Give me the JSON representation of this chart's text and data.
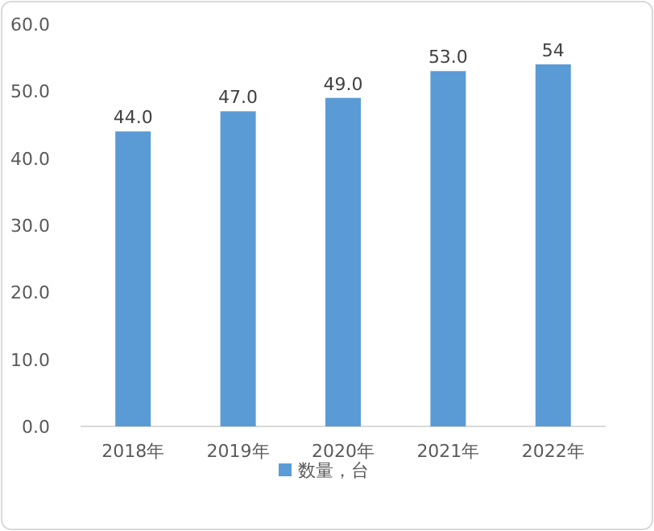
{
  "chart_data": {
    "type": "bar",
    "categories": [
      "2018年",
      "2019年",
      "2020年",
      "2021年",
      "2022年"
    ],
    "series": [
      {
        "name": "数量，台",
        "color": "#5b9bd5",
        "values": [
          44.0,
          47.0,
          49.0,
          53.0,
          54
        ]
      }
    ],
    "value_labels": [
      "44.0",
      "47.0",
      "49.0",
      "53.0",
      "54"
    ],
    "ylim": [
      0,
      60
    ],
    "yticks": [
      {
        "value": 0,
        "label": "0.0"
      },
      {
        "value": 10,
        "label": "10.0"
      },
      {
        "value": 20,
        "label": "20.0"
      },
      {
        "value": 30,
        "label": "30.0"
      },
      {
        "value": 40,
        "label": "40.0"
      },
      {
        "value": 50,
        "label": "50.0"
      },
      {
        "value": 60,
        "label": "60.0"
      }
    ],
    "grid": false,
    "legend": "bottom"
  }
}
